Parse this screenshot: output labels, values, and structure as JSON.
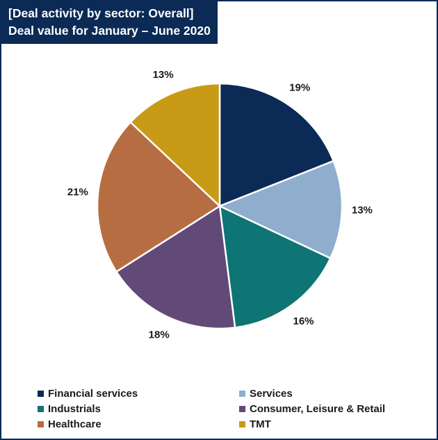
{
  "header": {
    "title_line1": "[Deal activity by sector: Overall]",
    "title_line2": "Deal value for January – June 2020"
  },
  "chart_data": {
    "type": "pie",
    "title": "[Deal activity by sector: Overall] Deal value for January – June 2020",
    "categories": [
      "Financial services",
      "Services",
      "Industrials",
      "Consumer, Leisure & Retail",
      "Healthcare",
      "TMT"
    ],
    "values": [
      19,
      13,
      16,
      18,
      21,
      13
    ],
    "value_labels": [
      "19%",
      "13%",
      "16%",
      "18%",
      "21%",
      "13%"
    ],
    "unit": "%",
    "colors": [
      "#0b2a55",
      "#8fadcc",
      "#0e7474",
      "#624a78",
      "#b76d42",
      "#c89a16"
    ],
    "legend_placement": "bottom"
  },
  "legend": {
    "items": [
      {
        "label": "Financial services",
        "color": "#0b2a55"
      },
      {
        "label": "Services",
        "color": "#8fadcc"
      },
      {
        "label": "Industrials",
        "color": "#0e7474"
      },
      {
        "label": "Consumer, Leisure & Retail",
        "color": "#624a78"
      },
      {
        "label": "Healthcare",
        "color": "#b76d42"
      },
      {
        "label": "TMT",
        "color": "#c89a16"
      }
    ]
  }
}
